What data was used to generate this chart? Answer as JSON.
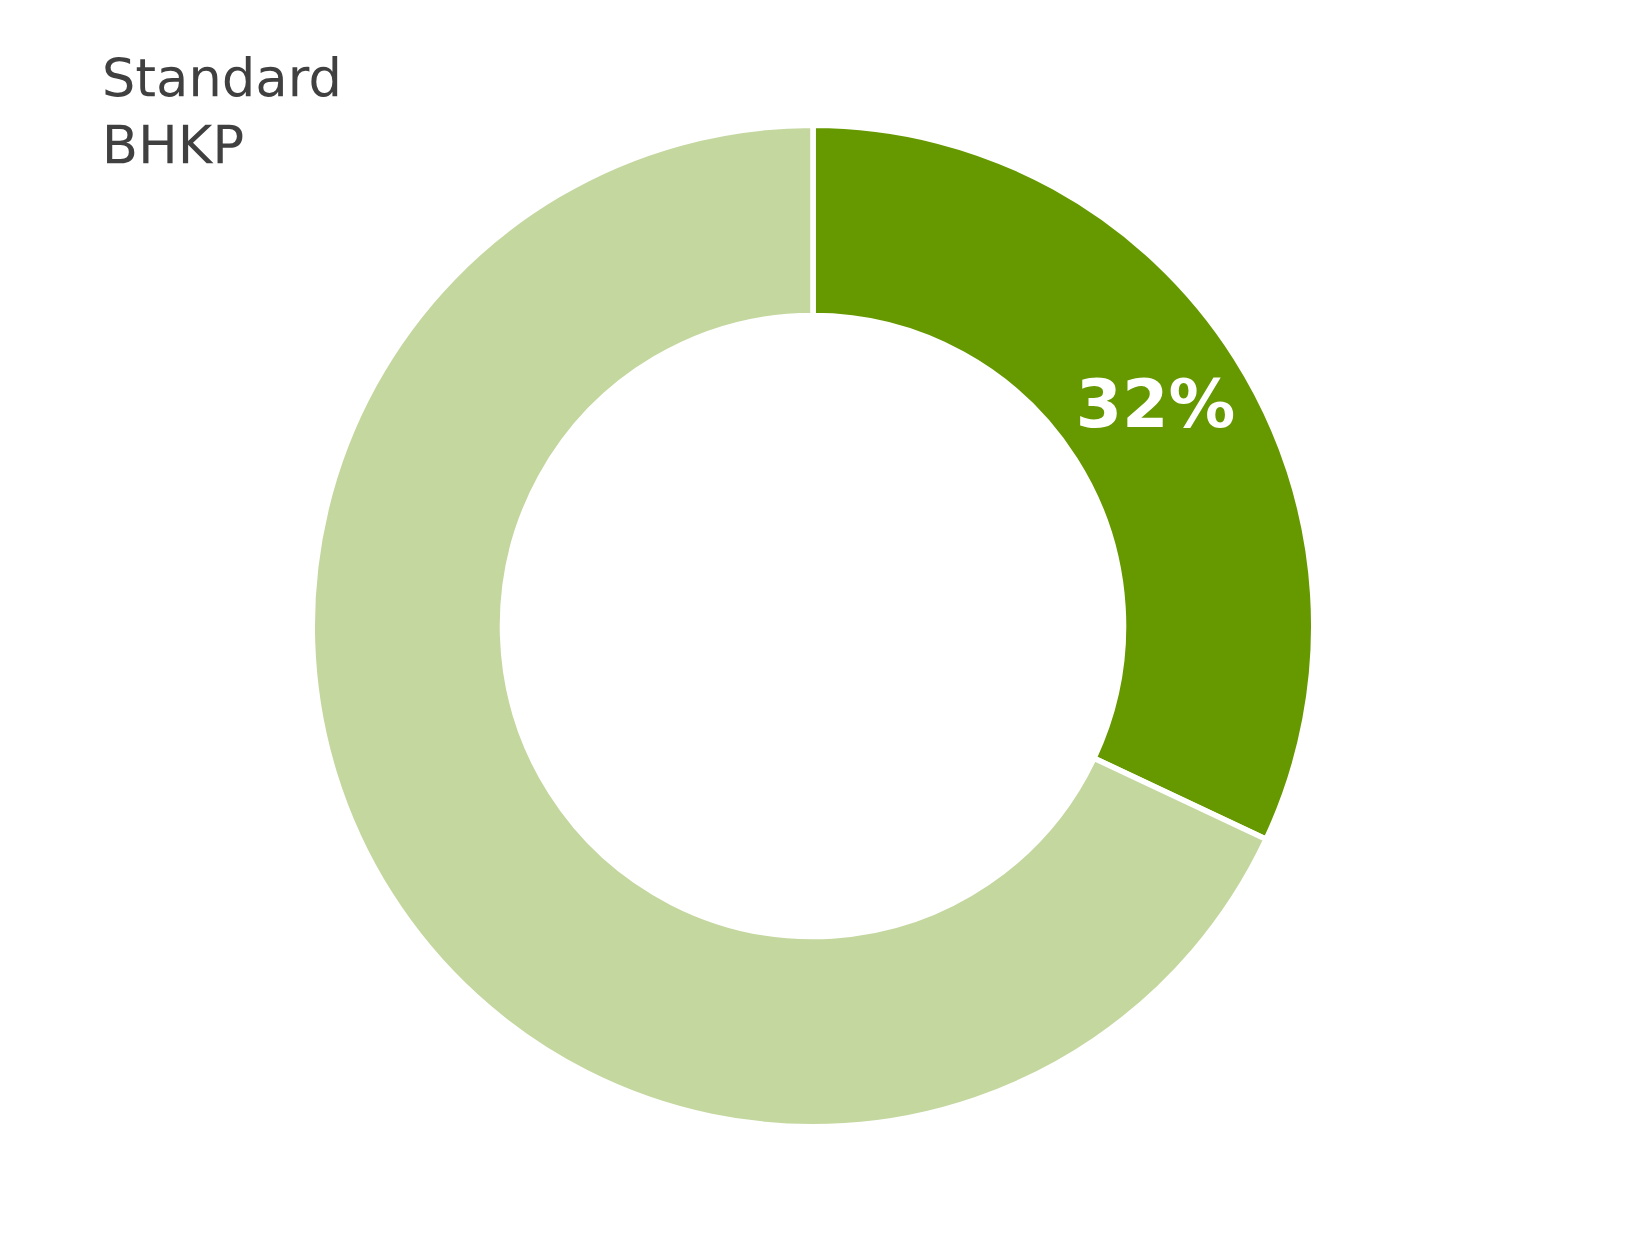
{
  "chart_data": {
    "type": "donut",
    "categories": [
      null,
      "Standard BHKP"
    ],
    "values": [
      32,
      68
    ],
    "colors": [
      "#669900",
      "#c4d79f"
    ],
    "value_labels": [
      "32%",
      null
    ],
    "legend": false
  }
}
